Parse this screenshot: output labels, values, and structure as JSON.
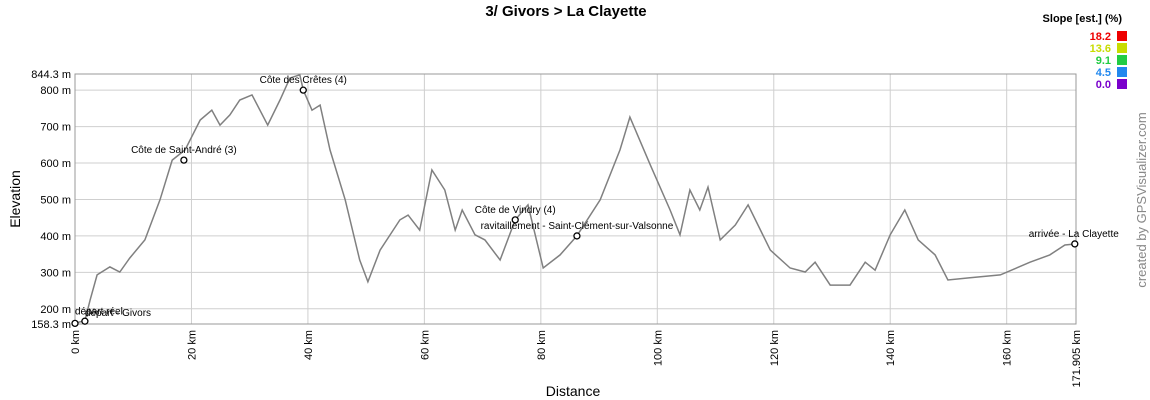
{
  "chart_data": {
    "type": "line",
    "title": "3/ Givors > La Clayette",
    "x_label": "Distance",
    "y_label": "Elevation",
    "credit": "created by GPSVisualizer.com",
    "xlim": [
      0,
      171.905
    ],
    "ylim": [
      158.3,
      844.3
    ],
    "xticks": [
      {
        "value": 0,
        "label": "0 km"
      },
      {
        "value": 20,
        "label": "20 km"
      },
      {
        "value": 40,
        "label": "40 km"
      },
      {
        "value": 60,
        "label": "60 km"
      },
      {
        "value": 80,
        "label": "80 km"
      },
      {
        "value": 100,
        "label": "100 km"
      },
      {
        "value": 120,
        "label": "120 km"
      },
      {
        "value": 140,
        "label": "140 km"
      },
      {
        "value": 160,
        "label": "160 km"
      },
      {
        "value": 171.905,
        "label": "171.905 km"
      }
    ],
    "yticks": [
      {
        "value": 158.3,
        "label": "158.3 m"
      },
      {
        "value": 200,
        "label": "200 m"
      },
      {
        "value": 300,
        "label": "300 m"
      },
      {
        "value": 400,
        "label": "400 m"
      },
      {
        "value": 500,
        "label": "500 m"
      },
      {
        "value": 600,
        "label": "600 m"
      },
      {
        "value": 700,
        "label": "700 m"
      },
      {
        "value": 800,
        "label": "800 m"
      },
      {
        "value": 844.3,
        "label": "844.3 m"
      }
    ],
    "grid": true,
    "x": [
      0,
      1.7,
      2.6,
      3.8,
      6.0,
      7.7,
      9.4,
      12.0,
      14.6,
      16.7,
      18.9,
      21.5,
      23.5,
      24.9,
      26.6,
      28.3,
      30.4,
      33.1,
      35.2,
      36.9,
      38.6,
      39.2,
      40.7,
      42.1,
      43.8,
      46.4,
      48.9,
      50.3,
      52.4,
      55.8,
      57.2,
      59.2,
      61.3,
      63.5,
      65.3,
      66.5,
      68.7,
      70.4,
      73.0,
      75.6,
      77.8,
      80.4,
      83.3,
      86.2,
      90.2,
      93.6,
      95.3,
      98.8,
      102.2,
      103.9,
      105.6,
      107.3,
      108.7,
      110.8,
      113.4,
      115.6,
      119.4,
      122.8,
      125.4,
      127.1,
      129.7,
      133.1,
      135.7,
      137.4,
      140.0,
      142.5,
      144.8,
      147.7,
      149.9,
      153.7,
      158.9,
      164.0,
      167.4,
      170.0,
      171.9
    ],
    "series": [
      {
        "name": "Elevation",
        "color": "#808080",
        "values": [
          161,
          167,
          224,
          293,
          315,
          301,
          339,
          389,
          499,
          608,
          636,
          718,
          745,
          704,
          732,
          773,
          787,
          704,
          773,
          833,
          842,
          800,
          745,
          759,
          636,
          499,
          334,
          274,
          361,
          444,
          457,
          416,
          581,
          526,
          416,
          471,
          403,
          389,
          334,
          444,
          485,
          312,
          348,
          400,
          499,
          636,
          726,
          595,
          471,
          403,
          526,
          471,
          534,
          389,
          430,
          485,
          361,
          312,
          301,
          328,
          265,
          265,
          328,
          306,
          403,
          471,
          389,
          348,
          279,
          285,
          293,
          328,
          348,
          375,
          378
        ]
      }
    ],
    "annotations": [
      {
        "label": "départ réel",
        "x": 0,
        "y": 160
      },
      {
        "label": "départ - Givors",
        "x": 1.7,
        "y": 166
      },
      {
        "label": "Côte de Saint-André (3)",
        "x": 18.7,
        "y": 608
      },
      {
        "label": "Côte des Crêtes (4)",
        "x": 39.2,
        "y": 800
      },
      {
        "label": "Côte de Vindry (4)",
        "x": 75.6,
        "y": 444
      },
      {
        "label": "ravitaillement - Saint-Clément-sur-Valsonne",
        "x": 86.2,
        "y": 400
      },
      {
        "label": "arrivée - La Clayette",
        "x": 171.7,
        "y": 378
      }
    ],
    "slope_legend": {
      "title": "Slope [est.] (%)",
      "items": [
        {
          "value": 18.2,
          "label": "18.2",
          "color": "#ee0000"
        },
        {
          "value": 13.6,
          "label": "13.6",
          "color": "#c8dc00"
        },
        {
          "value": 9.1,
          "label": "9.1",
          "color": "#22cc44"
        },
        {
          "value": 4.5,
          "label": "4.5",
          "color": "#2288ee"
        },
        {
          "value": 0.0,
          "label": "0.0",
          "color": "#7a00cc"
        }
      ]
    }
  }
}
